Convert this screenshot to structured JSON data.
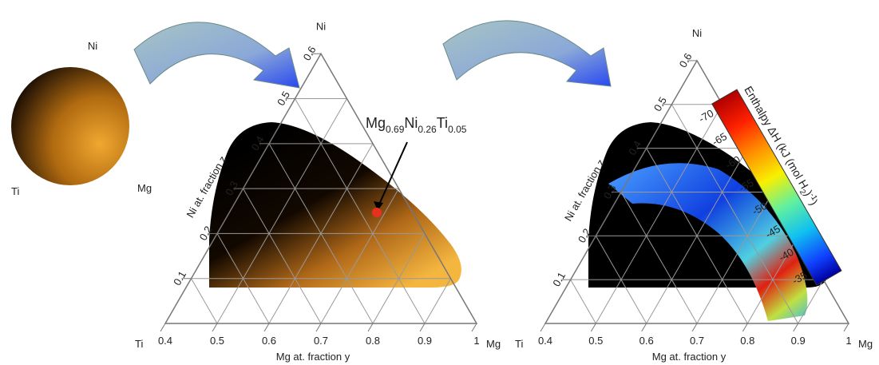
{
  "wafer": {
    "top": "Ni",
    "left": "Ti",
    "right": "Mg"
  },
  "ternary_left": {
    "vertices": {
      "top": "Ni",
      "left": "Ti",
      "right": "Mg"
    },
    "y_ticks": [
      "0.4",
      "0.5",
      "0.6",
      "0.7",
      "0.8",
      "0.9",
      "1"
    ],
    "z_ticks": [
      "0.1",
      "0.2",
      "0.3",
      "0.4",
      "0.5",
      "0.6"
    ],
    "y_axis_label": "Mg at. fraction y",
    "z_axis_label": "Ni at. fraction z",
    "annotation": [
      "Mg",
      "0.69",
      "Ni",
      "0.26",
      "Ti",
      "0.05"
    ]
  },
  "ternary_right": {
    "vertices": {
      "top": "Ni",
      "left": "Ti",
      "right": "Mg"
    },
    "y_ticks": [
      "0.4",
      "0.5",
      "0.6",
      "0.7",
      "0.8",
      "0.9",
      "1"
    ],
    "z_ticks": [
      "0.1",
      "0.2",
      "0.3",
      "0.4",
      "0.5",
      "0.6"
    ],
    "y_axis_label": "Mg at. fraction y",
    "z_axis_label": "Ni at. fraction z",
    "colorbar": {
      "title": [
        "Enthalpy ΔH (kJ (mol H",
        "2",
        ")",
        "-1",
        ")"
      ],
      "ticks": [
        "-70",
        "-65",
        "-60",
        "-55",
        "-50",
        "-45",
        "-40",
        "-35"
      ]
    }
  }
}
